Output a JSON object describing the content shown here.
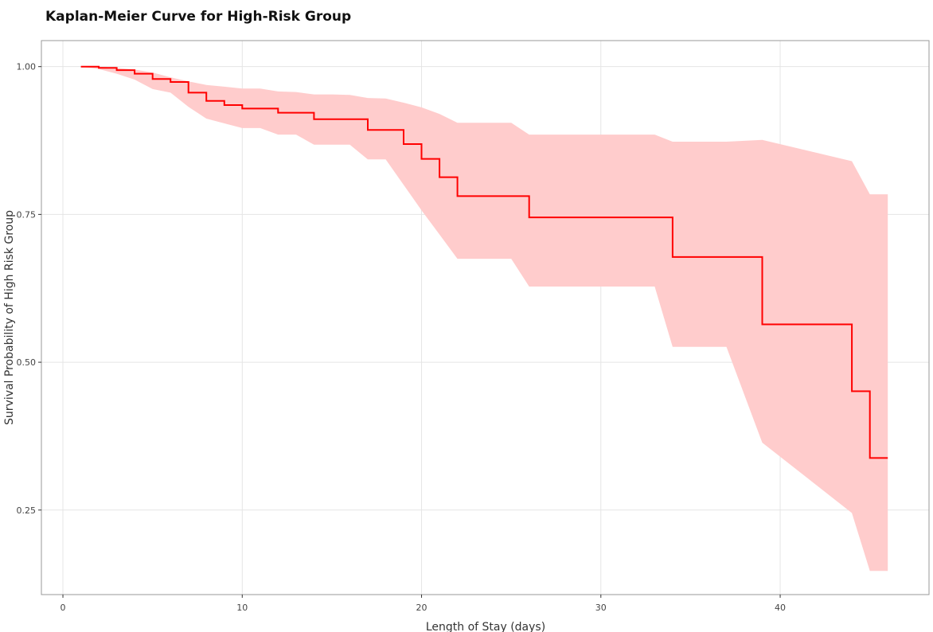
{
  "chart_data": {
    "type": "line",
    "title": "Kaplan-Meier Curve for High-Risk Group",
    "xlabel": "Length of Stay (days)",
    "ylabel": "Survival Probability of High Risk Group",
    "xlim": [
      -1.2,
      48.3
    ],
    "ylim": [
      0.107,
      1.044
    ],
    "xticks": [
      0,
      10,
      20,
      30,
      40
    ],
    "yticks": [
      0.25,
      0.5,
      0.75,
      1.0
    ],
    "ytick_labels": [
      "0.25",
      "0.50",
      "0.75",
      "1.00"
    ],
    "grid": true,
    "legend": "none",
    "colors": {
      "line": "#ff0000",
      "band": "#ffcccc",
      "grid": "#e5e5e5",
      "frame": "#999999"
    },
    "series": [
      {
        "values": {
          "time": [
            1,
            2,
            3,
            4,
            5,
            6,
            7,
            8,
            9,
            10,
            12,
            14,
            17,
            19,
            20,
            21,
            22,
            26,
            34,
            39,
            44,
            45,
            46
          ],
          "survival": [
            1.0,
            0.998,
            0.994,
            0.988,
            0.979,
            0.974,
            0.956,
            0.942,
            0.935,
            0.929,
            0.922,
            0.911,
            0.893,
            0.869,
            0.844,
            0.813,
            0.781,
            0.745,
            0.678,
            0.564,
            0.451,
            0.338,
            0.338
          ]
        }
      }
    ],
    "ci_band": {
      "x": [
        1,
        2,
        3,
        4,
        5,
        6,
        7,
        8,
        9,
        10,
        11,
        12,
        13,
        14,
        15,
        16,
        17,
        18,
        19,
        20,
        21,
        22,
        23,
        24,
        25,
        26,
        27,
        30,
        33,
        34,
        35,
        36,
        37,
        39,
        44,
        45,
        46
      ],
      "upper": [
        1.0,
        1.0,
        0.998,
        0.995,
        0.99,
        0.982,
        0.975,
        0.969,
        0.966,
        0.963,
        0.963,
        0.958,
        0.957,
        0.953,
        0.953,
        0.952,
        0.947,
        0.946,
        0.939,
        0.931,
        0.92,
        0.905,
        0.905,
        0.905,
        0.905,
        0.885,
        0.885,
        0.885,
        0.885,
        0.873,
        0.873,
        0.873,
        0.873,
        0.876,
        0.84,
        0.784,
        0.784
      ],
      "lower": [
        1.0,
        0.996,
        0.988,
        0.978,
        0.962,
        0.956,
        0.932,
        0.912,
        0.904,
        0.896,
        0.896,
        0.885,
        0.885,
        0.868,
        0.868,
        0.868,
        0.843,
        0.843,
        0.8,
        0.757,
        0.716,
        0.675,
        0.675,
        0.675,
        0.675,
        0.628,
        0.628,
        0.628,
        0.628,
        0.526,
        0.526,
        0.526,
        0.526,
        0.364,
        0.245,
        0.147,
        0.147
      ]
    }
  }
}
